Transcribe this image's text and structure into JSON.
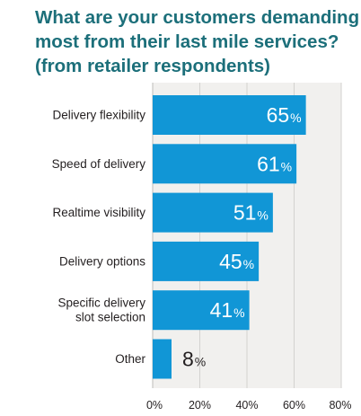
{
  "title_lines": [
    "What are your customers demanding",
    "most from their last mile services?",
    "(from retailer respondents)"
  ],
  "chart_data": {
    "type": "bar",
    "orientation": "horizontal",
    "title": "What are your customers demanding most from their last mile services? (from retailer respondents)",
    "categories": [
      "Delivery flexibility",
      "Speed of delivery",
      "Realtime visibility",
      "Delivery options",
      "Specific delivery slot selection",
      "Other"
    ],
    "category_label_lines": [
      [
        "Delivery flexibility"
      ],
      [
        "Speed of delivery"
      ],
      [
        "Realtime visibility"
      ],
      [
        "Delivery options"
      ],
      [
        "Specific delivery",
        "slot selection"
      ],
      [
        "Other"
      ]
    ],
    "values": [
      65,
      61,
      51,
      45,
      41,
      8
    ],
    "value_suffix": "%",
    "xlim": [
      0,
      80
    ],
    "xticks": [
      0,
      20,
      40,
      60,
      80
    ],
    "xtick_labels": [
      "0%",
      "20%",
      "40%",
      "60%",
      "80%"
    ],
    "xlabel": "",
    "ylabel": "",
    "grid": true,
    "legend": "none",
    "bar_color": "#1196d6",
    "plot_background": "#f1f0ee",
    "grid_color": "#d3d2cf",
    "title_color": "#1c6f7a",
    "label_color": "#231f20",
    "inside_value_color": "#ffffff",
    "outside_value_color": "#231f20"
  }
}
